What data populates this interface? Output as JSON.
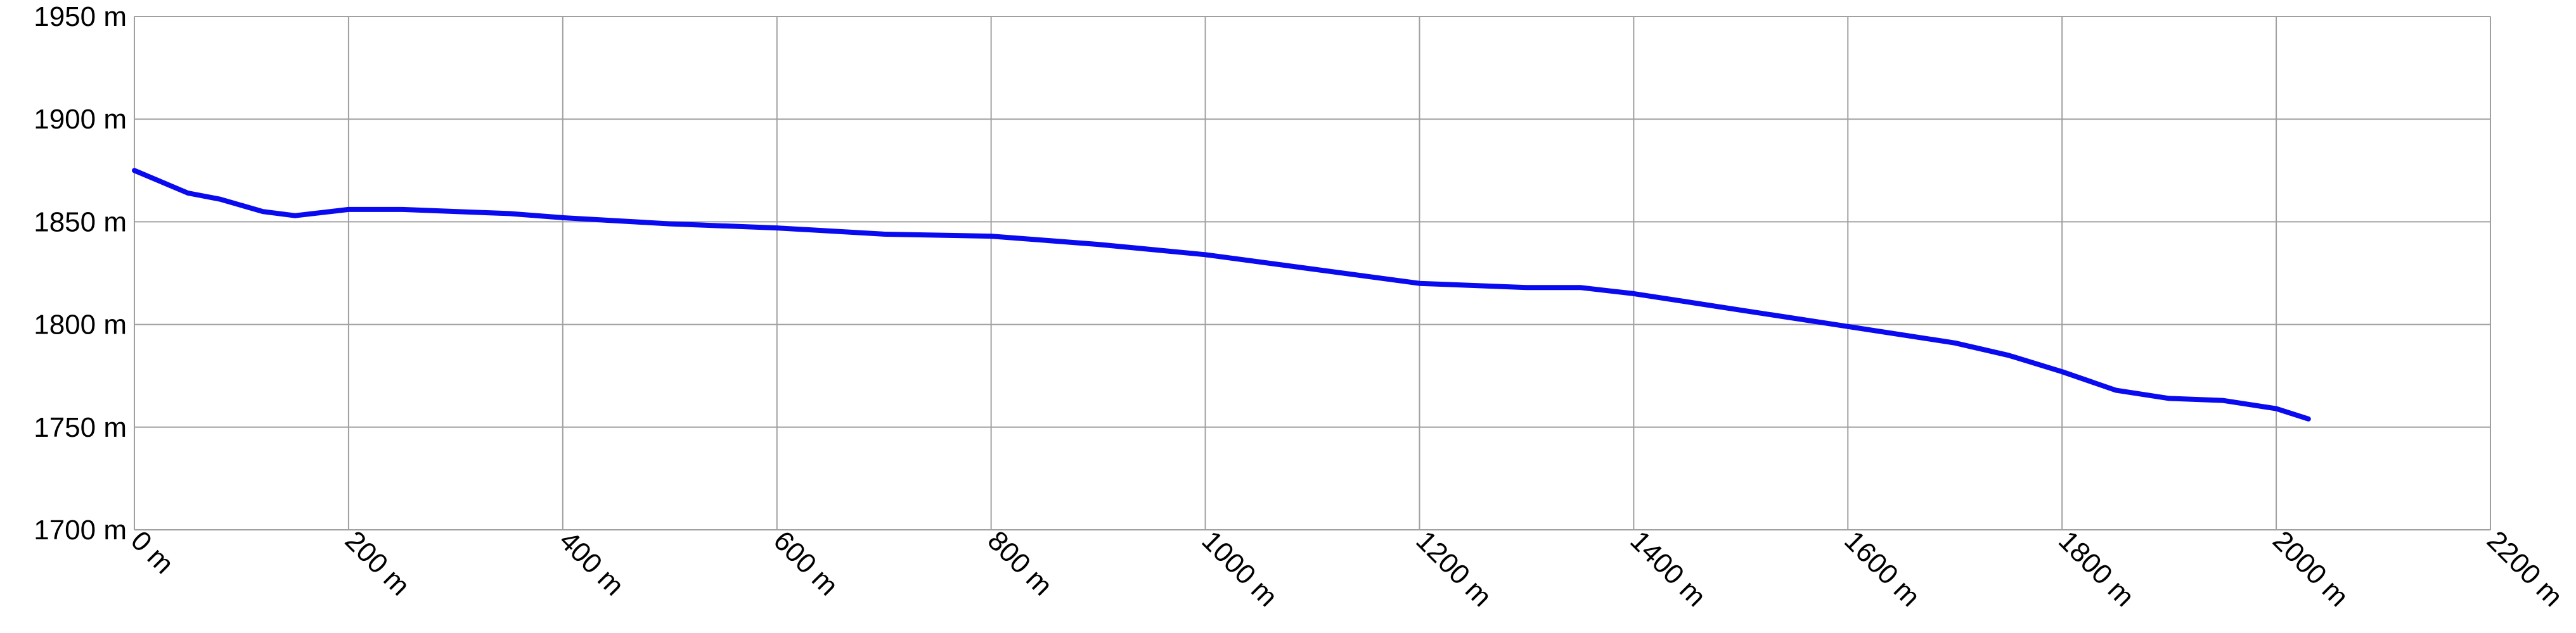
{
  "chart_data": {
    "type": "line",
    "x": [
      0,
      50,
      80,
      120,
      150,
      200,
      250,
      350,
      400,
      500,
      600,
      700,
      800,
      900,
      1000,
      1100,
      1200,
      1300,
      1350,
      1400,
      1500,
      1600,
      1700,
      1750,
      1800,
      1850,
      1900,
      1950,
      2000,
      2030
    ],
    "values": [
      1875,
      1864,
      1861,
      1855,
      1853,
      1856,
      1856,
      1854,
      1852,
      1849,
      1847,
      1844,
      1843,
      1839,
      1834,
      1827,
      1820,
      1818,
      1818,
      1815,
      1807,
      1799,
      1791,
      1785,
      1777,
      1768,
      1764,
      1763,
      1759,
      1754
    ],
    "color": "#0a0af0",
    "xlim": [
      0,
      2200
    ],
    "ylim": [
      1700,
      1950
    ],
    "xticks": [
      {
        "value": 0,
        "label": "0 m"
      },
      {
        "value": 200,
        "label": "200 m"
      },
      {
        "value": 400,
        "label": "400 m"
      },
      {
        "value": 600,
        "label": "600 m"
      },
      {
        "value": 800,
        "label": "800 m"
      },
      {
        "value": 1000,
        "label": "1000 m"
      },
      {
        "value": 1200,
        "label": "1200 m"
      },
      {
        "value": 1400,
        "label": "1400 m"
      },
      {
        "value": 1600,
        "label": "1600 m"
      },
      {
        "value": 1800,
        "label": "1800 m"
      },
      {
        "value": 2000,
        "label": "2000 m"
      },
      {
        "value": 2200,
        "label": "2200 m"
      }
    ],
    "yticks": [
      {
        "value": 1700,
        "label": "1700 m"
      },
      {
        "value": 1750,
        "label": "1750 m"
      },
      {
        "value": 1800,
        "label": "1800 m"
      },
      {
        "value": 1850,
        "label": "1850 m"
      },
      {
        "value": 1900,
        "label": "1900 m"
      },
      {
        "value": 1950,
        "label": "1950 m"
      }
    ],
    "grid": true
  }
}
